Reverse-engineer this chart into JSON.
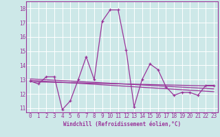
{
  "xlabel": "Windchill (Refroidissement éolien,°C)",
  "bg_color": "#cde8e8",
  "grid_color": "#ffffff",
  "line_color": "#993399",
  "spine_color": "#993399",
  "xlim": [
    -0.5,
    23.5
  ],
  "ylim": [
    10.7,
    18.5
  ],
  "yticks": [
    11,
    12,
    13,
    14,
    15,
    16,
    17,
    18
  ],
  "xticks": [
    0,
    1,
    2,
    3,
    4,
    5,
    6,
    7,
    8,
    9,
    10,
    11,
    12,
    13,
    14,
    15,
    16,
    17,
    18,
    19,
    20,
    21,
    22,
    23
  ],
  "series1_x": [
    0,
    1,
    2,
    3,
    4,
    5,
    6,
    7,
    8,
    9,
    10,
    11,
    12,
    13,
    14,
    15,
    16,
    17,
    18,
    19,
    20,
    21,
    22,
    23
  ],
  "series1_y": [
    12.9,
    12.7,
    13.2,
    13.2,
    10.9,
    11.5,
    13.0,
    14.6,
    13.0,
    17.1,
    17.9,
    17.9,
    15.1,
    11.1,
    13.0,
    14.1,
    13.7,
    12.5,
    11.9,
    12.1,
    12.1,
    11.9,
    12.6,
    12.6
  ],
  "series2_x": [
    0,
    23
  ],
  "series2_y": [
    13.05,
    12.35
  ],
  "series3_x": [
    0,
    23
  ],
  "series3_y": [
    12.95,
    12.15
  ],
  "series4_x": [
    0,
    23
  ],
  "series4_y": [
    12.85,
    12.55
  ],
  "tick_fontsize": 5.5,
  "xlabel_fontsize": 5.5
}
